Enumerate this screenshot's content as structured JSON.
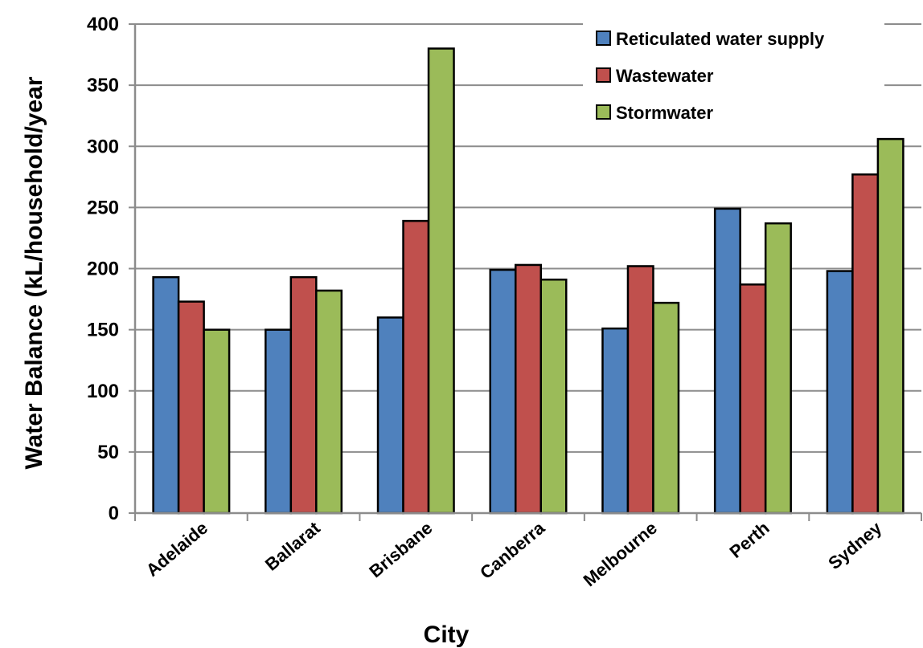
{
  "chart_data": {
    "type": "bar",
    "title": "",
    "xlabel": "City",
    "ylabel": "Water Balance (kL/household/year",
    "ylim": [
      0,
      400
    ],
    "ytick_step": 50,
    "grid": true,
    "legend_position": "top-right",
    "categories": [
      "Adelaide",
      "Ballarat",
      "Brisbane",
      "Canberra",
      "Melbourne",
      "Perth",
      "Sydney"
    ],
    "series": [
      {
        "name": "Reticulated water  supply",
        "color": "#4f81bd",
        "values": [
          193,
          150,
          160,
          199,
          151,
          249,
          198
        ]
      },
      {
        "name": "Wastewater",
        "color": "#c0504d",
        "values": [
          173,
          193,
          239,
          203,
          202,
          187,
          277
        ]
      },
      {
        "name": "Stormwater",
        "color": "#9bbb59",
        "values": [
          150,
          182,
          380,
          191,
          172,
          237,
          306
        ]
      }
    ]
  }
}
